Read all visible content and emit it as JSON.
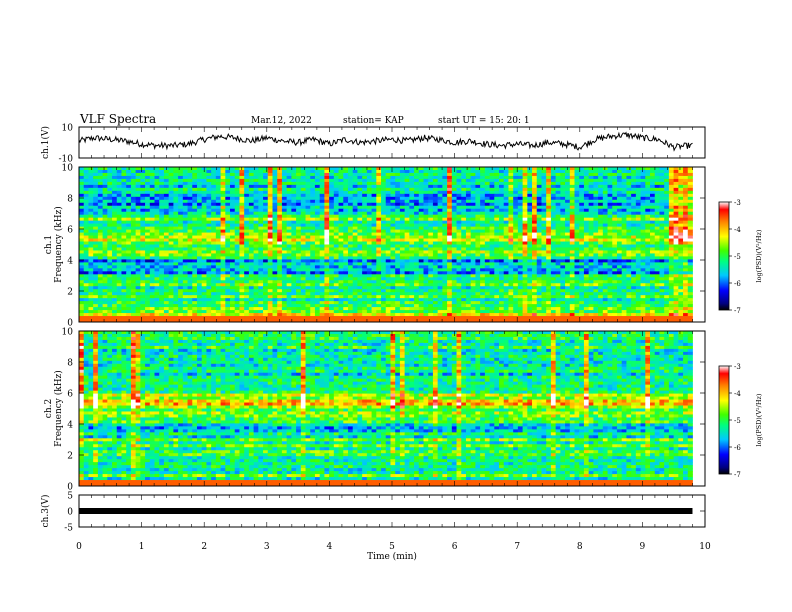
{
  "header": {
    "title": "VLF Spectra",
    "date": "Mar.12, 2022",
    "station": "station= KAP",
    "start": "start UT =  15: 20: 1"
  },
  "colorbar": {
    "label": "log(PSD)(V²/Hz)",
    "ticks": [
      "-3",
      "-4",
      "-5",
      "-6",
      "-7"
    ]
  },
  "chart_data": [
    {
      "type": "line",
      "panel": "ch1",
      "ylabel": "ch.1(V)",
      "ylim": [
        -10,
        10
      ],
      "yticks": [
        "10",
        "-10"
      ],
      "xlim": [
        0,
        10
      ],
      "x": [
        0,
        0.25,
        0.5,
        0.75,
        1,
        1.25,
        1.5,
        1.75,
        2,
        2.25,
        2.5,
        2.75,
        3,
        3.25,
        3.5,
        3.75,
        4,
        4.25,
        4.5,
        4.75,
        5,
        5.25,
        5.5,
        5.75,
        6,
        6.25,
        6.5,
        6.75,
        7,
        7.25,
        7.5,
        7.75,
        8,
        8.25,
        8.5,
        8.75,
        9,
        9.25,
        9.5,
        9.75
      ],
      "y": [
        1,
        3,
        2,
        1,
        -1,
        -2,
        -2,
        -1,
        2,
        4,
        3,
        1,
        3,
        1,
        0,
        2,
        -1,
        2,
        0,
        1,
        2,
        1,
        3,
        2,
        0,
        1,
        -1,
        -2,
        -1,
        -2,
        0,
        -1,
        -3,
        2,
        4,
        5,
        3,
        2,
        -3,
        -2
      ],
      "color": "#000000"
    },
    {
      "type": "heatmap",
      "panel": "ch1-spectrogram",
      "ylabel": "ch.1\nFrequency (kHz)",
      "ylim": [
        0,
        10
      ],
      "yticks": [
        "0",
        "2",
        "4",
        "6",
        "8",
        "10"
      ],
      "xlim": [
        0,
        10
      ],
      "zlim": [
        -7,
        -3
      ],
      "band_freq_khz": [
        0.5,
        1.5,
        2.5,
        3.5,
        4.5,
        5.5,
        6.5,
        7.5,
        8.5,
        9.5
      ],
      "band_log_psd": [
        -4.6,
        -5.2,
        -5.0,
        -5.7,
        -4.9,
        -4.7,
        -5.0,
        -5.8,
        -5.5,
        -5.3
      ]
    },
    {
      "type": "heatmap",
      "panel": "ch2-spectrogram",
      "ylabel": "ch.2\nFrequency (kHz)",
      "ylim": [
        0,
        10
      ],
      "yticks": [
        "0",
        "2",
        "4",
        "6",
        "8",
        "10"
      ],
      "xlim": [
        0,
        10
      ],
      "zlim": [
        -7,
        -3
      ],
      "band_freq_khz": [
        0.5,
        1.5,
        2.5,
        3.5,
        4.5,
        5.5,
        6.5,
        7.5,
        8.5,
        9.5
      ],
      "band_log_psd": [
        -5.0,
        -5.4,
        -5.1,
        -5.6,
        -4.9,
        -4.3,
        -5.2,
        -5.5,
        -5.3,
        -5.0
      ]
    },
    {
      "type": "line",
      "panel": "ch3",
      "ylabel": "ch.3(V)",
      "ylim": [
        -5,
        5
      ],
      "yticks": [
        "5",
        "0",
        "-5"
      ],
      "xlim": [
        0,
        10
      ],
      "xlabel": "Time (min)",
      "xticks": [
        "0",
        "1",
        "2",
        "3",
        "4",
        "5",
        "6",
        "7",
        "8",
        "9",
        "10"
      ],
      "x": [
        0,
        9.8
      ],
      "y": [
        0,
        0
      ],
      "color": "#000000"
    }
  ]
}
